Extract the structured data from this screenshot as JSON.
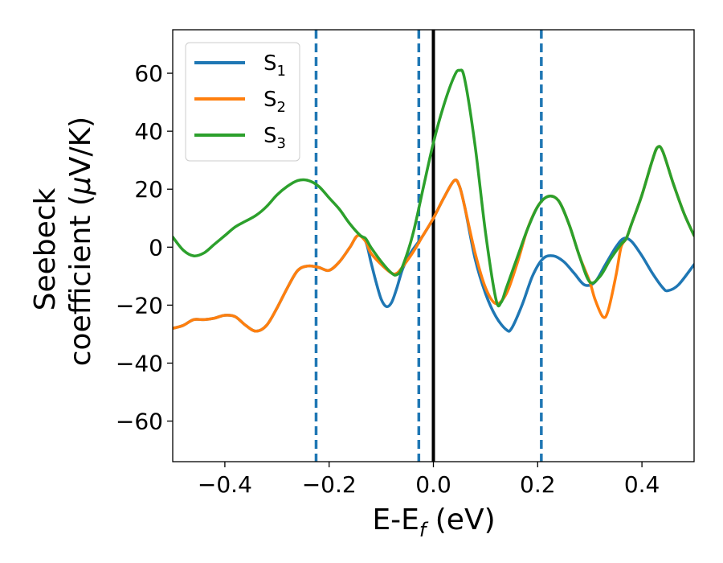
{
  "chart_data": {
    "type": "line",
    "xlabel_main": "E-E",
    "xlabel_sub": "f",
    "xlabel_unit": " (eV)",
    "ylabel_line1": "Seebeck",
    "ylabel_line2_pre": "coefficient  (",
    "ylabel_mu": "μ",
    "ylabel_line2_post": "V/K)",
    "xlim": [
      -0.5,
      0.5
    ],
    "ylim": [
      -74,
      75
    ],
    "xticks": [
      -0.4,
      -0.2,
      0.0,
      0.2,
      0.4
    ],
    "xtick_labels": [
      "−0.4",
      "−0.2",
      "0.0",
      "0.2",
      "0.4"
    ],
    "yticks": [
      -60,
      -40,
      -20,
      0,
      20,
      40,
      60
    ],
    "ytick_labels": [
      "−60",
      "−40",
      "−20",
      "0",
      "20",
      "40",
      "60"
    ],
    "grid": false,
    "legend_position": "top-left",
    "series": [
      {
        "name": "S",
        "subscript": "1",
        "color": "#1f77b4",
        "points": [
          [
            -0.5,
            -28
          ],
          [
            -0.48,
            -27
          ],
          [
            -0.46,
            -25
          ],
          [
            -0.44,
            -25
          ],
          [
            -0.42,
            -24.5
          ],
          [
            -0.4,
            -23.5
          ],
          [
            -0.38,
            -24
          ],
          [
            -0.36,
            -27
          ],
          [
            -0.34,
            -29
          ],
          [
            -0.32,
            -27
          ],
          [
            -0.3,
            -21
          ],
          [
            -0.28,
            -14
          ],
          [
            -0.26,
            -8
          ],
          [
            -0.24,
            -6.5
          ],
          [
            -0.22,
            -7
          ],
          [
            -0.2,
            -8
          ],
          [
            -0.18,
            -5
          ],
          [
            -0.16,
            0
          ],
          [
            -0.145,
            4
          ],
          [
            -0.13,
            2
          ],
          [
            -0.12,
            -5
          ],
          [
            -0.11,
            -12
          ],
          [
            -0.1,
            -18
          ],
          [
            -0.09,
            -20.5
          ],
          [
            -0.08,
            -19
          ],
          [
            -0.07,
            -14
          ],
          [
            -0.06,
            -8
          ],
          [
            -0.05,
            -4
          ],
          [
            -0.04,
            -1
          ],
          [
            -0.02,
            4
          ],
          [
            0,
            10
          ],
          [
            0.02,
            17
          ],
          [
            0.04,
            23
          ],
          [
            0.05,
            21
          ],
          [
            0.06,
            14
          ],
          [
            0.08,
            -4
          ],
          [
            0.1,
            -16
          ],
          [
            0.12,
            -24
          ],
          [
            0.14,
            -28.5
          ],
          [
            0.15,
            -28
          ],
          [
            0.17,
            -20
          ],
          [
            0.19,
            -10
          ],
          [
            0.21,
            -4
          ],
          [
            0.23,
            -3
          ],
          [
            0.25,
            -5
          ],
          [
            0.27,
            -9
          ],
          [
            0.29,
            -13
          ],
          [
            0.31,
            -12
          ],
          [
            0.33,
            -6
          ],
          [
            0.35,
            0
          ],
          [
            0.365,
            3
          ],
          [
            0.38,
            2
          ],
          [
            0.4,
            -3
          ],
          [
            0.42,
            -9
          ],
          [
            0.44,
            -14
          ],
          [
            0.45,
            -15
          ],
          [
            0.47,
            -13
          ],
          [
            0.5,
            -6
          ]
        ]
      },
      {
        "name": "S",
        "subscript": "2",
        "color": "#ff7f0e",
        "points": [
          [
            -0.5,
            -28
          ],
          [
            -0.48,
            -27
          ],
          [
            -0.46,
            -25
          ],
          [
            -0.44,
            -25
          ],
          [
            -0.42,
            -24.5
          ],
          [
            -0.4,
            -23.5
          ],
          [
            -0.38,
            -24
          ],
          [
            -0.36,
            -27
          ],
          [
            -0.34,
            -29
          ],
          [
            -0.32,
            -27
          ],
          [
            -0.3,
            -21
          ],
          [
            -0.28,
            -14
          ],
          [
            -0.26,
            -8
          ],
          [
            -0.24,
            -6.5
          ],
          [
            -0.22,
            -7
          ],
          [
            -0.2,
            -8
          ],
          [
            -0.18,
            -5
          ],
          [
            -0.16,
            0
          ],
          [
            -0.145,
            4
          ],
          [
            -0.13,
            2
          ],
          [
            -0.12,
            -2
          ],
          [
            -0.1,
            -6
          ],
          [
            -0.08,
            -9
          ],
          [
            -0.07,
            -9
          ],
          [
            -0.06,
            -7
          ],
          [
            -0.04,
            -2
          ],
          [
            -0.02,
            4
          ],
          [
            0,
            10
          ],
          [
            0.02,
            17
          ],
          [
            0.04,
            23
          ],
          [
            0.05,
            21
          ],
          [
            0.06,
            14
          ],
          [
            0.08,
            -2
          ],
          [
            0.1,
            -14
          ],
          [
            0.12,
            -19.5
          ],
          [
            0.14,
            -16
          ],
          [
            0.16,
            -6
          ],
          [
            0.18,
            6
          ],
          [
            0.2,
            14
          ],
          [
            0.22,
            17.5
          ],
          [
            0.24,
            16
          ],
          [
            0.26,
            8
          ],
          [
            0.28,
            -3
          ],
          [
            0.3,
            -12
          ],
          [
            0.31,
            -18
          ],
          [
            0.325,
            -24
          ],
          [
            0.335,
            -22
          ],
          [
            0.35,
            -10
          ],
          [
            0.36,
            0
          ],
          [
            0.37,
            3
          ],
          [
            0.38,
            8
          ],
          [
            0.4,
            18
          ],
          [
            0.42,
            30
          ],
          [
            0.43,
            34.5
          ],
          [
            0.44,
            33
          ],
          [
            0.46,
            22
          ],
          [
            0.48,
            12
          ],
          [
            0.5,
            4
          ]
        ]
      },
      {
        "name": "S",
        "subscript": "3",
        "color": "#2ca02c",
        "points": [
          [
            -0.5,
            3.5
          ],
          [
            -0.48,
            -1
          ],
          [
            -0.46,
            -3
          ],
          [
            -0.44,
            -2
          ],
          [
            -0.42,
            1
          ],
          [
            -0.4,
            4
          ],
          [
            -0.38,
            7
          ],
          [
            -0.36,
            9
          ],
          [
            -0.34,
            11
          ],
          [
            -0.32,
            14
          ],
          [
            -0.3,
            18
          ],
          [
            -0.28,
            21
          ],
          [
            -0.26,
            23
          ],
          [
            -0.24,
            23
          ],
          [
            -0.22,
            21
          ],
          [
            -0.2,
            17
          ],
          [
            -0.18,
            13
          ],
          [
            -0.16,
            8
          ],
          [
            -0.14,
            4
          ],
          [
            -0.13,
            3
          ],
          [
            -0.12,
            0
          ],
          [
            -0.1,
            -5
          ],
          [
            -0.08,
            -9
          ],
          [
            -0.07,
            -9.5
          ],
          [
            -0.06,
            -7
          ],
          [
            -0.04,
            4
          ],
          [
            -0.02,
            20
          ],
          [
            0,
            36
          ],
          [
            0.02,
            49
          ],
          [
            0.04,
            59
          ],
          [
            0.05,
            61
          ],
          [
            0.06,
            58
          ],
          [
            0.08,
            35
          ],
          [
            0.1,
            5
          ],
          [
            0.12,
            -18
          ],
          [
            0.13,
            -19
          ],
          [
            0.14,
            -14
          ],
          [
            0.16,
            -4
          ],
          [
            0.18,
            6
          ],
          [
            0.2,
            14
          ],
          [
            0.22,
            17.5
          ],
          [
            0.24,
            16
          ],
          [
            0.26,
            8
          ],
          [
            0.28,
            -3
          ],
          [
            0.3,
            -12
          ],
          [
            0.32,
            -10
          ],
          [
            0.34,
            -4
          ],
          [
            0.36,
            1
          ],
          [
            0.37,
            3
          ],
          [
            0.38,
            8
          ],
          [
            0.4,
            18
          ],
          [
            0.42,
            30
          ],
          [
            0.43,
            34.5
          ],
          [
            0.44,
            33
          ],
          [
            0.46,
            22
          ],
          [
            0.48,
            12
          ],
          [
            0.5,
            4
          ]
        ]
      }
    ],
    "vlines": [
      {
        "x": -0.225,
        "style": "dashed",
        "color": "#1f77b4"
      },
      {
        "x": -0.028,
        "style": "dashed",
        "color": "#1f77b4"
      },
      {
        "x": 0.0,
        "style": "solid",
        "color": "#000000"
      },
      {
        "x": 0.207,
        "style": "dashed",
        "color": "#1f77b4"
      }
    ]
  }
}
